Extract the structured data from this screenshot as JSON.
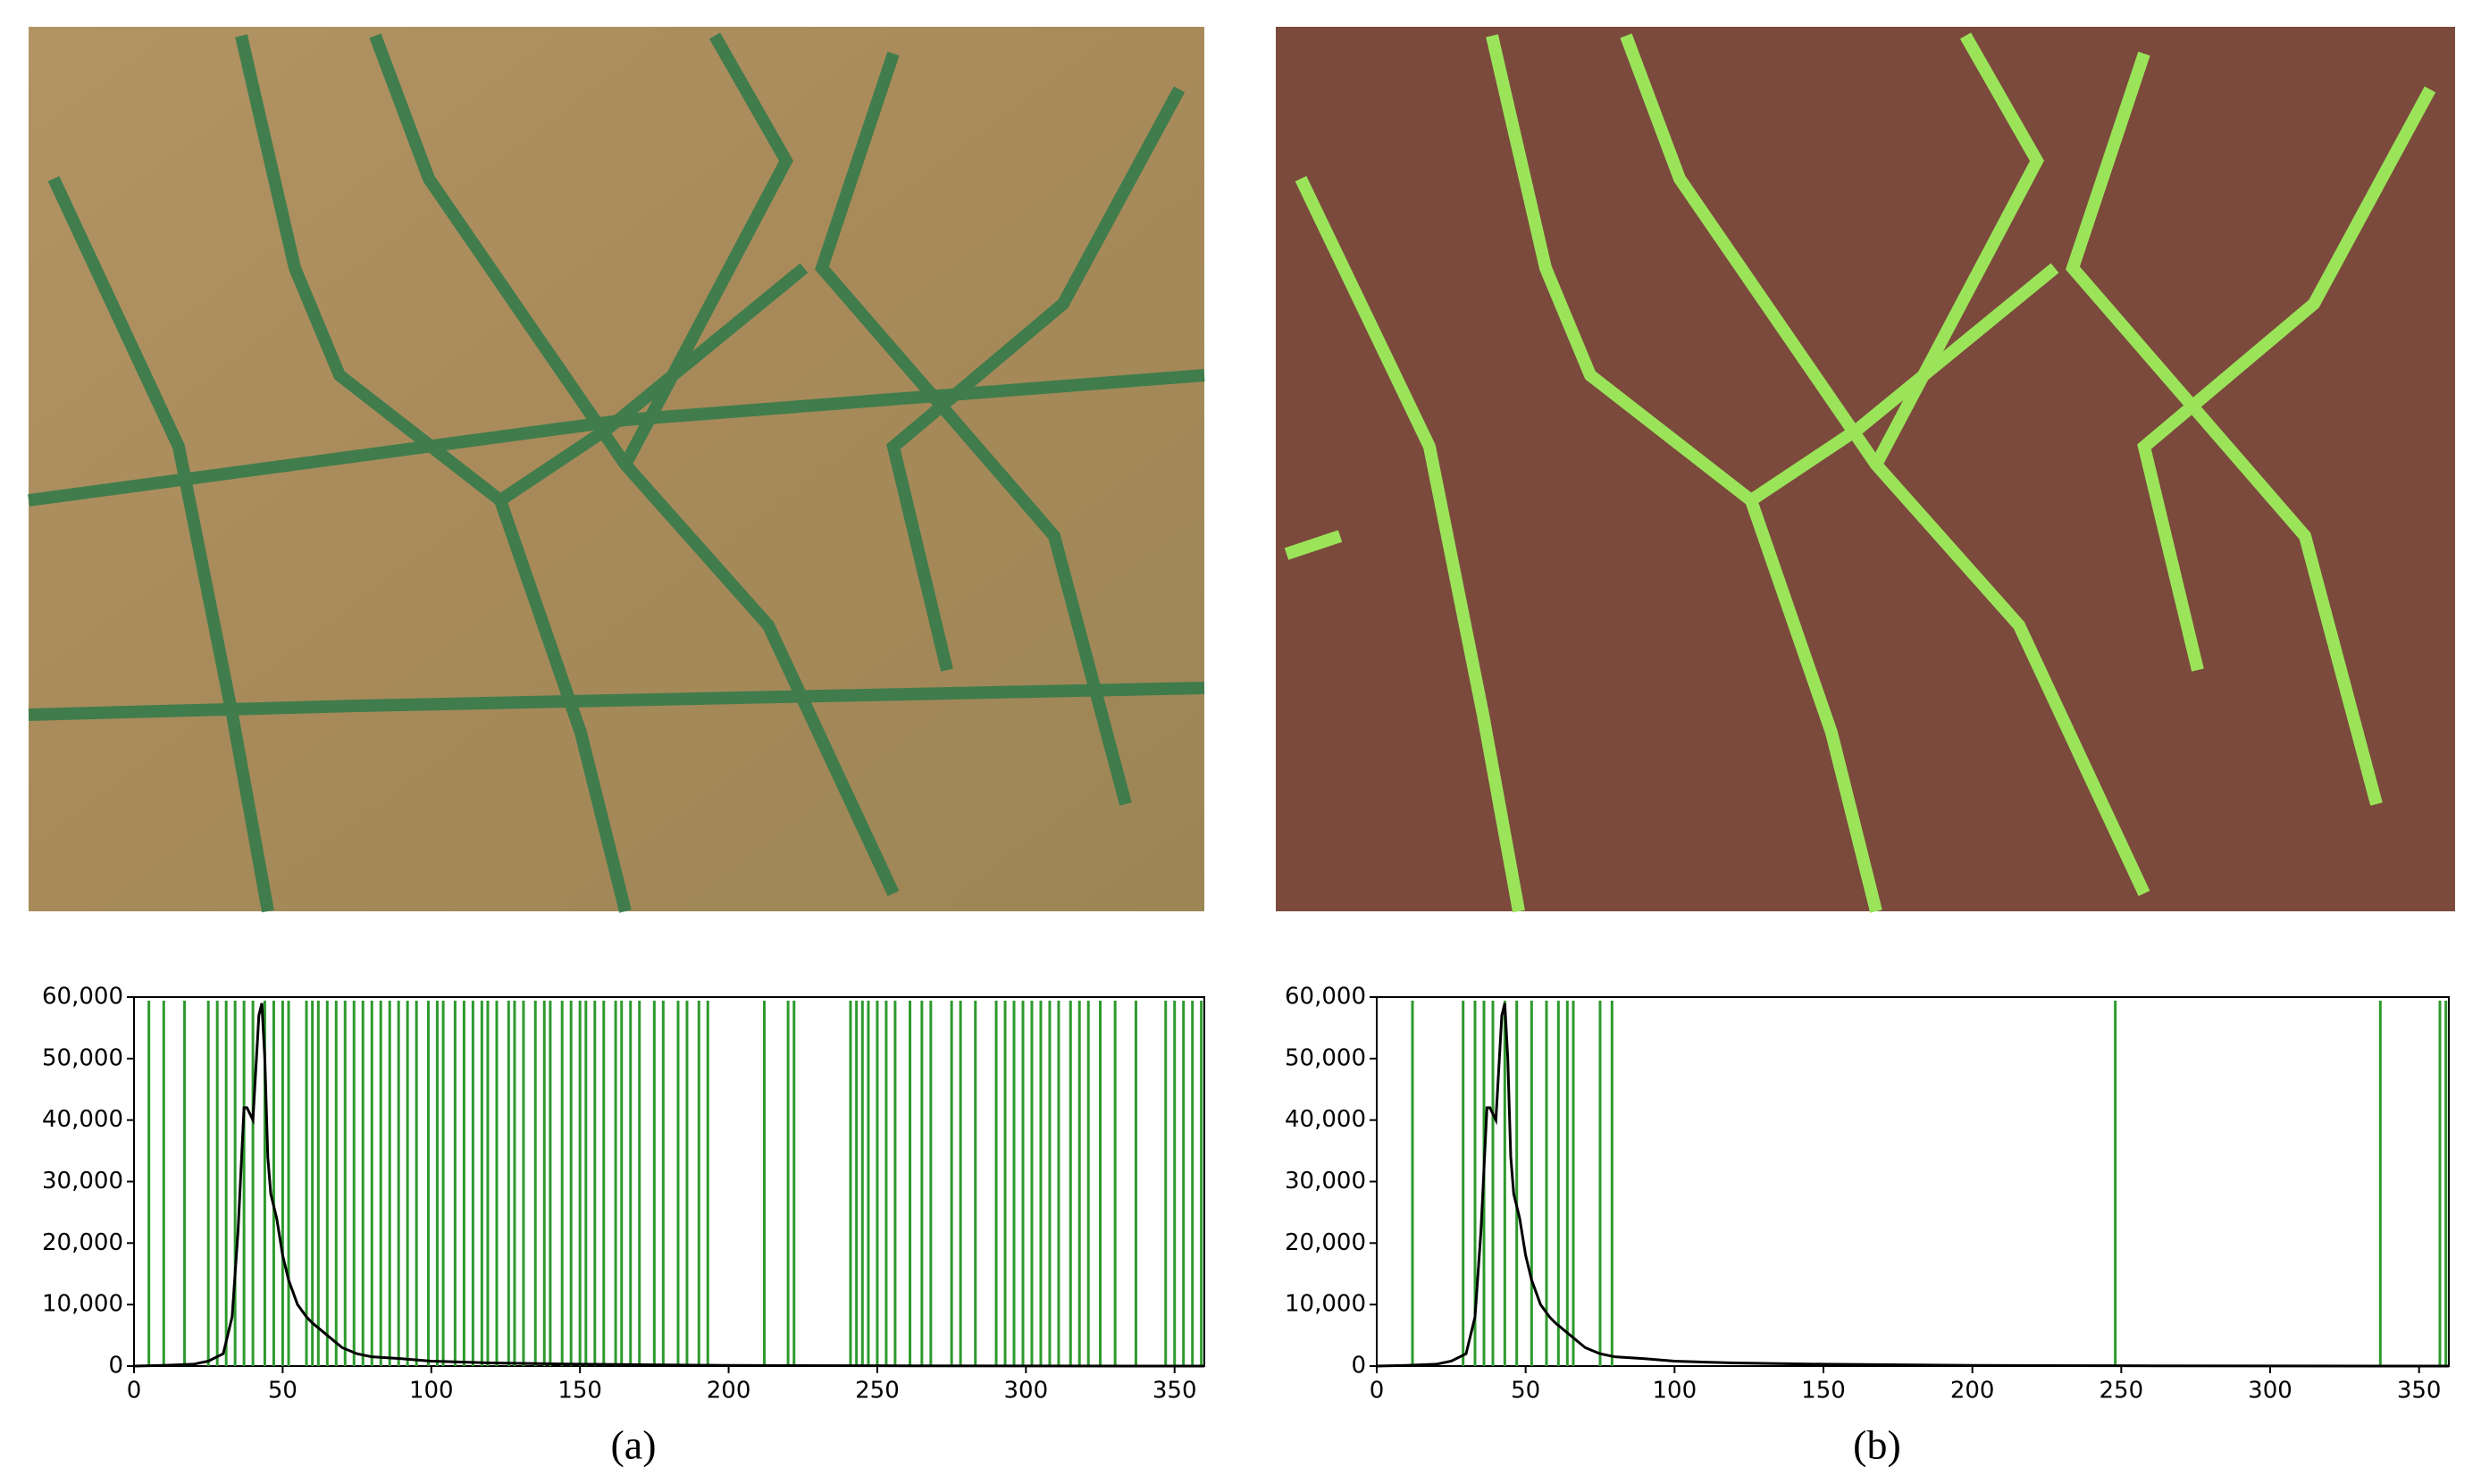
{
  "chart_data": [
    {
      "type": "line",
      "caption": "(a)",
      "xlim": [
        0,
        360
      ],
      "ylim": [
        0,
        60000
      ],
      "xticks": [
        0,
        50,
        100,
        150,
        200,
        250,
        300,
        350
      ],
      "yticks": [
        0,
        {
          "value": 10000,
          "label": "10,000"
        },
        {
          "value": 20000,
          "label": "20,000"
        },
        {
          "value": 30000,
          "label": "30,000"
        },
        {
          "value": 40000,
          "label": "40,000"
        },
        {
          "value": 50000,
          "label": "50,000"
        },
        {
          "value": 60000,
          "label": "60,000"
        }
      ],
      "series": [
        {
          "color": "#000000",
          "x": [
            0,
            10,
            20,
            25,
            30,
            33,
            35,
            37,
            38,
            40,
            42,
            43,
            44,
            45,
            46,
            48,
            50,
            52,
            55,
            58,
            60,
            65,
            70,
            75,
            80,
            90,
            100,
            120,
            150,
            200,
            250,
            300,
            360
          ],
          "values": [
            0,
            100,
            300,
            800,
            2000,
            8000,
            22000,
            42000,
            42000,
            40000,
            57000,
            59000,
            50000,
            34000,
            28000,
            24000,
            18000,
            14000,
            10000,
            8000,
            7000,
            5000,
            3000,
            2000,
            1500,
            1200,
            800,
            500,
            300,
            100,
            50,
            20,
            0
          ]
        }
      ],
      "marker_color": "#2e9a2e",
      "markers": [
        5,
        10,
        17,
        25,
        28,
        31,
        34,
        37,
        40,
        44,
        47,
        50,
        52,
        58,
        60,
        62,
        65,
        68,
        71,
        74,
        77,
        80,
        83,
        86,
        89,
        92,
        95,
        99,
        102,
        104,
        108,
        111,
        114,
        117,
        119,
        122,
        126,
        128,
        131,
        135,
        138,
        140,
        144,
        147,
        150,
        152,
        155,
        158,
        162,
        164,
        167,
        170,
        175,
        178,
        183,
        186,
        190,
        193,
        212,
        220,
        222,
        241,
        243,
        245,
        247,
        250,
        253,
        256,
        261,
        265,
        268,
        275,
        278,
        283,
        290,
        293,
        296,
        299,
        302,
        305,
        308,
        311,
        315,
        318,
        321,
        325,
        330,
        337,
        347,
        350,
        353,
        356,
        359
      ]
    },
    {
      "type": "line",
      "caption": "(b)",
      "xlim": [
        0,
        360
      ],
      "ylim": [
        0,
        60000
      ],
      "xticks": [
        0,
        50,
        100,
        150,
        200,
        250,
        300,
        350
      ],
      "yticks": [
        0,
        {
          "value": 10000,
          "label": "10,000"
        },
        {
          "value": 20000,
          "label": "20,000"
        },
        {
          "value": 30000,
          "label": "30,000"
        },
        {
          "value": 40000,
          "label": "40,000"
        },
        {
          "value": 50000,
          "label": "50,000"
        },
        {
          "value": 60000,
          "label": "60,000"
        }
      ],
      "series": [
        {
          "color": "#000000",
          "x": [
            0,
            10,
            20,
            25,
            30,
            33,
            35,
            37,
            38,
            40,
            42,
            43,
            44,
            45,
            46,
            48,
            50,
            52,
            55,
            58,
            60,
            65,
            70,
            75,
            80,
            90,
            100,
            120,
            150,
            200,
            250,
            300,
            360
          ],
          "values": [
            0,
            100,
            300,
            800,
            2000,
            8000,
            22000,
            42000,
            42000,
            40000,
            57000,
            59000,
            50000,
            34000,
            28000,
            24000,
            18000,
            14000,
            10000,
            8000,
            7000,
            5000,
            3000,
            2000,
            1500,
            1200,
            800,
            500,
            300,
            100,
            50,
            20,
            0
          ]
        }
      ],
      "marker_color": "#2e9a2e",
      "markers": [
        12,
        29,
        33,
        36,
        39,
        43,
        47,
        52,
        57,
        61,
        64,
        66,
        75,
        79,
        248,
        337,
        357,
        359
      ]
    }
  ]
}
